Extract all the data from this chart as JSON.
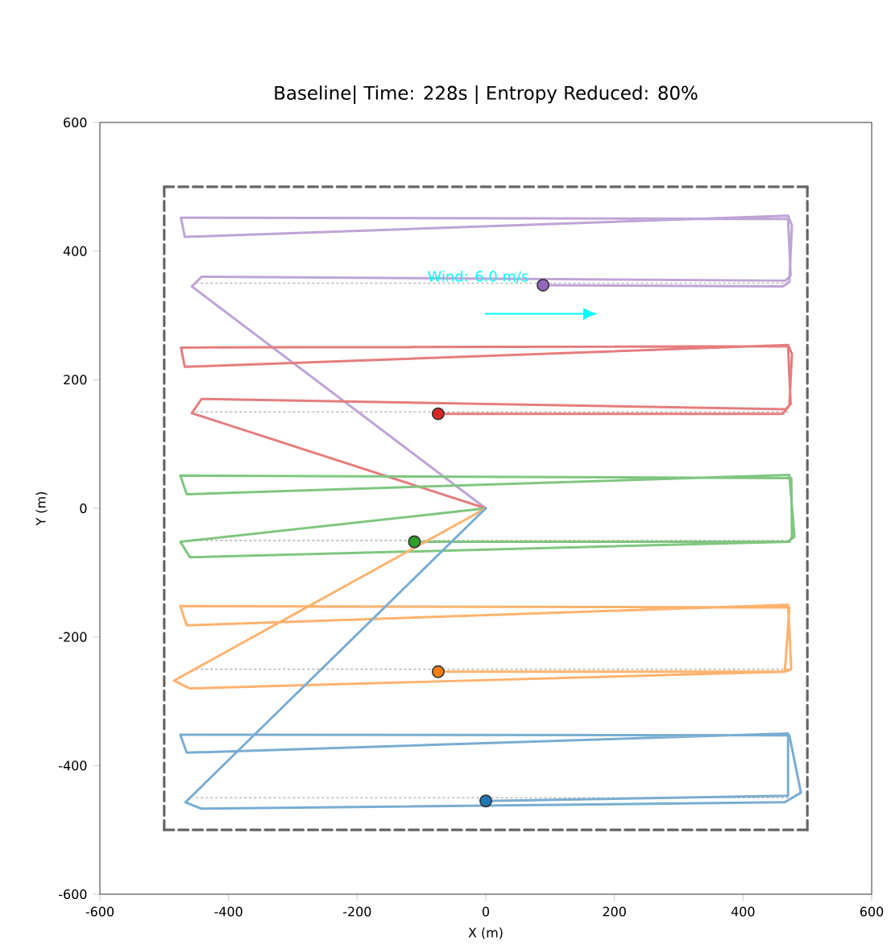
{
  "chart_data": {
    "type": "line",
    "title": "Baseline| Time: 228s | Entropy Reduced: 80%",
    "xlabel": "X (m)",
    "ylabel": "Y (m)",
    "xlim": [
      -600,
      600
    ],
    "ylim": [
      -600,
      600
    ],
    "xticks": [
      -600,
      -400,
      -200,
      0,
      200,
      400,
      600
    ],
    "yticks": [
      -600,
      -400,
      -200,
      0,
      200,
      400,
      600
    ],
    "annotations": [
      "Wind: 6.0 m/s"
    ],
    "series": [
      {
        "color": "#666666",
        "line_style": "dashed",
        "x": [
          -500,
          500
        ],
        "values": [
          500,
          500
        ]
      },
      {
        "color": "#666666",
        "line_style": "dashed",
        "x": [
          500,
          500
        ],
        "values": [
          500,
          -500
        ]
      },
      {
        "color": "#666666",
        "line_style": "dashed",
        "x": [
          500,
          -500
        ],
        "values": [
          -500,
          -500
        ]
      },
      {
        "color": "#666666",
        "line_style": "dashed",
        "x": [
          -500,
          -500
        ],
        "values": [
          -500,
          500
        ]
      },
      {
        "color": "#bbbbbb",
        "line_style": "dotted",
        "x": [
          -450,
          470
        ],
        "values": [
          350,
          350
        ]
      },
      {
        "color": "#bbbbbb",
        "line_style": "dotted",
        "x": [
          -450,
          470
        ],
        "values": [
          150,
          150
        ]
      },
      {
        "color": "#bbbbbb",
        "line_style": "dotted",
        "x": [
          -450,
          470
        ],
        "values": [
          -50,
          -50
        ]
      },
      {
        "color": "#bbbbbb",
        "line_style": "dotted",
        "x": [
          -450,
          470
        ],
        "values": [
          -250,
          -250
        ]
      },
      {
        "color": "#bbbbbb",
        "line_style": "dotted",
        "x": [
          -450,
          470
        ],
        "values": [
          -450,
          -450
        ]
      },
      {
        "color": "#bfa4d7",
        "line_style": "solid",
        "x": [
          0,
          -457,
          -442,
          466,
          474,
          470,
          -474,
          -468,
          470,
          476,
          472,
          462,
          89
        ],
        "values": [
          0,
          345,
          360,
          354,
          362,
          450,
          452,
          422,
          455,
          440,
          352,
          345,
          347
        ]
      },
      {
        "color": "#e67d7e",
        "line_style": "solid",
        "x": [
          0,
          -457,
          -442,
          466,
          474,
          470,
          -474,
          -468,
          470,
          476,
          472,
          462,
          -74
        ],
        "values": [
          0,
          148,
          170,
          154,
          162,
          252,
          250,
          220,
          254,
          240,
          160,
          147,
          147
        ]
      },
      {
        "color": "#80c680",
        "line_style": "solid",
        "x": [
          0,
          -475,
          -460,
          472,
          476,
          475,
          -475,
          -465,
          472,
          480,
          470,
          -111
        ],
        "values": [
          0,
          -52,
          -76,
          -52,
          -44,
          47,
          51,
          22,
          52,
          -44,
          -52,
          -52
        ]
      },
      {
        "color": "#ffb26e",
        "line_style": "solid",
        "x": [
          0,
          -485,
          -460,
          465,
          472,
          -475,
          -465,
          470,
          475,
          465,
          -74
        ],
        "values": [
          0,
          -268,
          -280,
          -254,
          -154,
          -152,
          -182,
          -150,
          -250,
          -254,
          -254
        ]
      },
      {
        "color": "#79add2",
        "line_style": "solid",
        "x": [
          0,
          -467,
          -442,
          465,
          490,
          472,
          -475,
          -465,
          470,
          470,
          0
        ],
        "values": [
          0,
          -457,
          -467,
          -457,
          -442,
          -353,
          -352,
          -380,
          -350,
          -447,
          -455
        ]
      },
      {
        "type": "scatter",
        "marker": "circle",
        "color": "#9467bd",
        "x": [
          89
        ],
        "values": [
          347
        ]
      },
      {
        "type": "scatter",
        "marker": "circle",
        "color": "#d62728",
        "x": [
          -74
        ],
        "values": [
          147
        ]
      },
      {
        "type": "scatter",
        "marker": "circle",
        "color": "#2ca02c",
        "x": [
          -111
        ],
        "values": [
          -52
        ]
      },
      {
        "type": "scatter",
        "marker": "circle",
        "color": "#ff7f0e",
        "x": [
          -74
        ],
        "values": [
          -254
        ]
      },
      {
        "type": "scatter",
        "marker": "circle",
        "color": "#1f77b4",
        "x": [
          0
        ],
        "values": [
          -455
        ]
      }
    ]
  }
}
